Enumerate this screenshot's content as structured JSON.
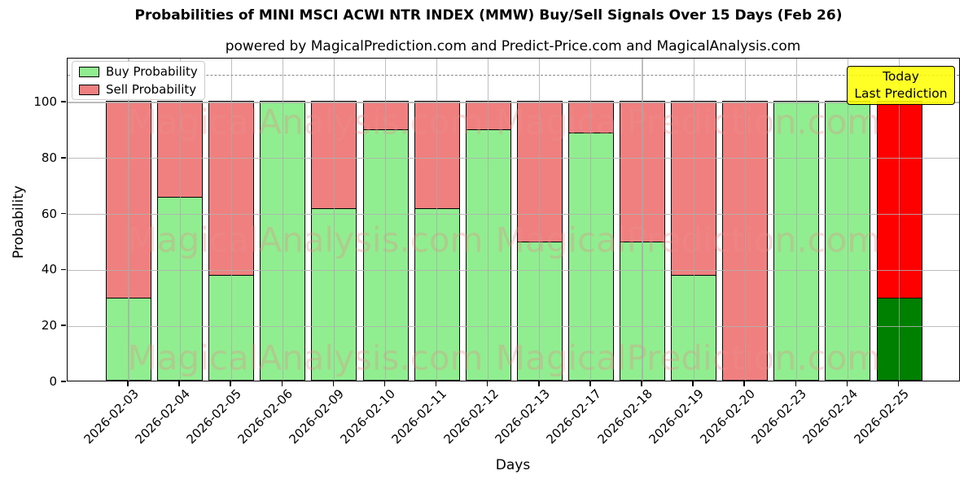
{
  "title": "Probabilities of MINI MSCI ACWI NTR INDEX (MMW) Buy/Sell Signals Over 15 Days (Feb 26)",
  "subtitle": "powered by MagicalPrediction.com and Predict-Price.com and MagicalAnalysis.com",
  "annotation": {
    "line1": "Today",
    "line2": "Last Prediction"
  },
  "watermarks": {
    "left": "MagicalAnalysis.com",
    "right": "MagicalPrediction.com"
  },
  "legend": {
    "items": [
      {
        "label": "Buy Probability",
        "color": "#90EE90"
      },
      {
        "label": "Sell Probability",
        "color": "#F08080"
      }
    ]
  },
  "colors": {
    "buy": "#90EE90",
    "sell": "#F08080",
    "today_buy": "#008000",
    "today_sell": "#FF0000",
    "annotation_bg": "#FFFF00",
    "grid": "#B0B0B0",
    "bar_edge": "#000000"
  },
  "chart_data": {
    "type": "bar",
    "stacked": true,
    "title": "Probabilities of MINI MSCI ACWI NTR INDEX (MMW) Buy/Sell Signals Over 15 Days (Feb 26)",
    "xlabel": "Days",
    "ylabel": "Probability",
    "categories": [
      "2026-02-03",
      "2026-02-04",
      "2026-02-05",
      "2026-02-06",
      "2026-02-09",
      "2026-02-10",
      "2026-02-11",
      "2026-02-12",
      "2026-02-13",
      "2026-02-17",
      "2026-02-18",
      "2026-02-19",
      "2026-02-20",
      "2026-02-23",
      "2026-02-24",
      "2026-02-25"
    ],
    "series": [
      {
        "name": "Buy Probability",
        "color": "#90EE90",
        "values": [
          30,
          66,
          38,
          100,
          62,
          90,
          62,
          90,
          50,
          89,
          50,
          38,
          0,
          100,
          100,
          30
        ]
      },
      {
        "name": "Sell Probability",
        "color": "#F08080",
        "values": [
          70,
          34,
          62,
          0,
          38,
          10,
          38,
          10,
          50,
          11,
          50,
          62,
          100,
          0,
          0,
          70
        ]
      }
    ],
    "today_bar": {
      "category": "2026-02-25",
      "buy_color": "#008000",
      "sell_color": "#FF0000"
    },
    "yticks": [
      0,
      20,
      40,
      60,
      80,
      100
    ],
    "ylim": [
      0,
      115.7
    ],
    "dashed_line_y": 110,
    "grid": true,
    "legend_position": "upper left"
  }
}
